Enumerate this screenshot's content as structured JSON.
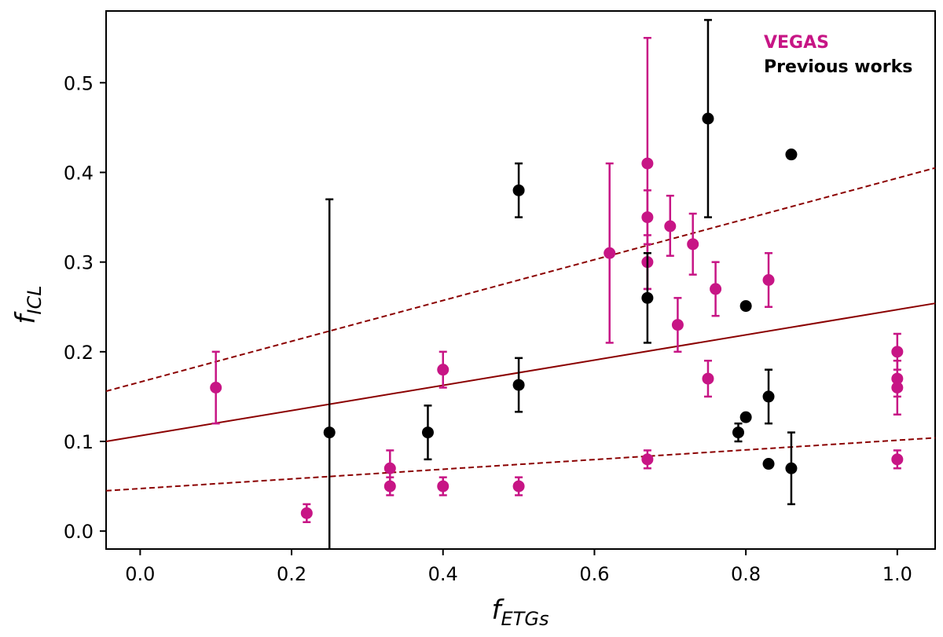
{
  "chart_data": {
    "type": "scatter",
    "title": "",
    "xlabel": {
      "main": "f",
      "sub": "ETGs"
    },
    "ylabel": {
      "main": "f",
      "sub": "ICL"
    },
    "xlim": [
      -0.045,
      1.05
    ],
    "ylim": [
      -0.02,
      0.58
    ],
    "xticks": [
      0.0,
      0.2,
      0.4,
      0.6,
      0.8,
      1.0
    ],
    "xtick_labels": [
      "0.0",
      "0.2",
      "0.4",
      "0.6",
      "0.8",
      "1.0"
    ],
    "yticks": [
      0.0,
      0.1,
      0.2,
      0.3,
      0.4,
      0.5
    ],
    "ytick_labels": [
      "0.0",
      "0.1",
      "0.2",
      "0.3",
      "0.4",
      "0.5"
    ],
    "grid": false,
    "legend": {
      "placement": "top-right",
      "entries": [
        {
          "label": "VEGAS",
          "color": "#c71585"
        },
        {
          "label": "Previous works",
          "color": "#000000"
        }
      ]
    },
    "fit_lines": [
      {
        "name": "fit",
        "style": "solid",
        "color": "#8b0000",
        "x": [
          -0.045,
          1.05
        ],
        "y": [
          0.1,
          0.254
        ]
      },
      {
        "name": "upper",
        "style": "dashed",
        "color": "#8b0000",
        "x": [
          -0.045,
          1.05
        ],
        "y": [
          0.156,
          0.405
        ]
      },
      {
        "name": "lower",
        "style": "dashed",
        "color": "#8b0000",
        "x": [
          -0.045,
          1.05
        ],
        "y": [
          0.045,
          0.104
        ]
      }
    ],
    "series": [
      {
        "name": "VEGAS",
        "color": "#c71585",
        "points": [
          {
            "x": 0.1,
            "y": 0.16,
            "ylo": 0.12,
            "yhi": 0.2
          },
          {
            "x": 0.22,
            "y": 0.02,
            "ylo": 0.01,
            "yhi": 0.03
          },
          {
            "x": 0.33,
            "y": 0.07,
            "ylo": 0.05,
            "yhi": 0.09
          },
          {
            "x": 0.33,
            "y": 0.05,
            "ylo": 0.04,
            "yhi": 0.06
          },
          {
            "x": 0.4,
            "y": 0.18,
            "ylo": 0.16,
            "yhi": 0.2
          },
          {
            "x": 0.4,
            "y": 0.05,
            "ylo": 0.04,
            "yhi": 0.06
          },
          {
            "x": 0.5,
            "y": 0.05,
            "ylo": 0.04,
            "yhi": 0.06
          },
          {
            "x": 0.62,
            "y": 0.31,
            "ylo": 0.21,
            "yhi": 0.41
          },
          {
            "x": 0.67,
            "y": 0.41,
            "ylo": 0.27,
            "yhi": 0.55
          },
          {
            "x": 0.67,
            "y": 0.35,
            "ylo": 0.32,
            "yhi": 0.38
          },
          {
            "x": 0.67,
            "y": 0.3,
            "ylo": 0.27,
            "yhi": 0.33
          },
          {
            "x": 0.67,
            "y": 0.08,
            "ylo": 0.07,
            "yhi": 0.09
          },
          {
            "x": 0.7,
            "y": 0.34,
            "ylo": 0.307,
            "yhi": 0.374
          },
          {
            "x": 0.71,
            "y": 0.23,
            "ylo": 0.2,
            "yhi": 0.26
          },
          {
            "x": 0.73,
            "y": 0.32,
            "ylo": 0.286,
            "yhi": 0.354
          },
          {
            "x": 0.75,
            "y": 0.17,
            "ylo": 0.15,
            "yhi": 0.19
          },
          {
            "x": 0.76,
            "y": 0.27,
            "ylo": 0.24,
            "yhi": 0.3
          },
          {
            "x": 0.83,
            "y": 0.28,
            "ylo": 0.25,
            "yhi": 0.31
          },
          {
            "x": 1.0,
            "y": 0.2,
            "ylo": 0.18,
            "yhi": 0.22
          },
          {
            "x": 1.0,
            "y": 0.17,
            "ylo": 0.15,
            "yhi": 0.19
          },
          {
            "x": 1.0,
            "y": 0.16,
            "ylo": 0.13,
            "yhi": 0.19
          },
          {
            "x": 1.0,
            "y": 0.08,
            "ylo": 0.07,
            "yhi": 0.09
          }
        ]
      },
      {
        "name": "Previous works",
        "color": "#000000",
        "points": [
          {
            "x": 0.25,
            "y": 0.11,
            "ylo": -0.02,
            "yhi": 0.37
          },
          {
            "x": 0.38,
            "y": 0.11,
            "ylo": 0.08,
            "yhi": 0.14
          },
          {
            "x": 0.5,
            "y": 0.38,
            "ylo": 0.35,
            "yhi": 0.41
          },
          {
            "x": 0.5,
            "y": 0.163,
            "ylo": 0.133,
            "yhi": 0.193
          },
          {
            "x": 0.67,
            "y": 0.26,
            "ylo": 0.21,
            "yhi": 0.31
          },
          {
            "x": 0.75,
            "y": 0.46,
            "ylo": 0.35,
            "yhi": 0.57
          },
          {
            "x": 0.79,
            "y": 0.11,
            "ylo": 0.1,
            "yhi": 0.12
          },
          {
            "x": 0.8,
            "y": 0.251,
            "ylo": null,
            "yhi": null
          },
          {
            "x": 0.8,
            "y": 0.127,
            "ylo": null,
            "yhi": null
          },
          {
            "x": 0.83,
            "y": 0.15,
            "ylo": 0.12,
            "yhi": 0.18
          },
          {
            "x": 0.83,
            "y": 0.075,
            "ylo": null,
            "yhi": null
          },
          {
            "x": 0.86,
            "y": 0.42,
            "ylo": null,
            "yhi": null
          },
          {
            "x": 0.86,
            "y": 0.07,
            "ylo": 0.03,
            "yhi": 0.11
          }
        ]
      }
    ]
  }
}
